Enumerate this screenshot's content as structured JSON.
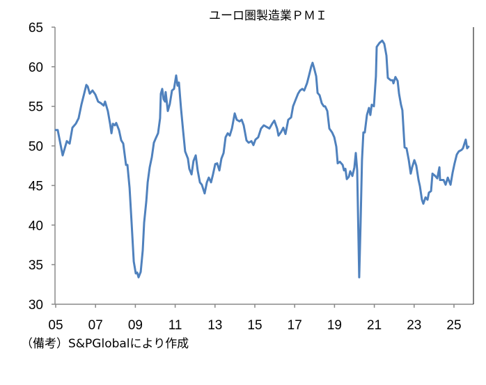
{
  "chart_data": {
    "type": "line",
    "title": "ユーロ圏製造業ＰＭＩ",
    "footnote": "（備考）S&PGlobalにより作成",
    "xlabel": "",
    "ylabel": "",
    "ylim": [
      30,
      65
    ],
    "xlim": [
      2005,
      2025.95
    ],
    "yticks": [
      30,
      35,
      40,
      45,
      50,
      55,
      60,
      65
    ],
    "ytick_labels": [
      "30",
      "35",
      "40",
      "45",
      "50",
      "55",
      "60",
      "65"
    ],
    "xticks": [
      2005,
      2007,
      2009,
      2011,
      2013,
      2015,
      2017,
      2019,
      2021,
      2023,
      2025
    ],
    "xtick_labels": [
      "05",
      "07",
      "09",
      "11",
      "13",
      "15",
      "17",
      "19",
      "21",
      "23",
      "25"
    ],
    "grid": false,
    "legend": "none",
    "color": "#4f81bd",
    "series": [
      {
        "name": "ユーロ圏製造業PMI",
        "points": [
          [
            2005.0,
            52.0
          ],
          [
            2005.1,
            52.0
          ],
          [
            2005.35,
            48.8
          ],
          [
            2005.56,
            50.6
          ],
          [
            2005.7,
            50.3
          ],
          [
            2005.84,
            52.3
          ],
          [
            2006.01,
            52.8
          ],
          [
            2006.15,
            53.5
          ],
          [
            2006.29,
            55.2
          ],
          [
            2006.47,
            57.0
          ],
          [
            2006.54,
            57.7
          ],
          [
            2006.61,
            57.5
          ],
          [
            2006.71,
            56.6
          ],
          [
            2006.85,
            57.0
          ],
          [
            2006.99,
            56.5
          ],
          [
            2007.13,
            55.6
          ],
          [
            2007.27,
            55.4
          ],
          [
            2007.41,
            55.1
          ],
          [
            2007.48,
            55.6
          ],
          [
            2007.62,
            54.4
          ],
          [
            2007.73,
            52.8
          ],
          [
            2007.8,
            51.6
          ],
          [
            2007.87,
            52.8
          ],
          [
            2007.97,
            52.6
          ],
          [
            2008.04,
            52.9
          ],
          [
            2008.18,
            52.0
          ],
          [
            2008.29,
            50.7
          ],
          [
            2008.39,
            50.3
          ],
          [
            2008.53,
            47.6
          ],
          [
            2008.6,
            47.6
          ],
          [
            2008.71,
            44.7
          ],
          [
            2008.81,
            40.3
          ],
          [
            2008.92,
            35.4
          ],
          [
            2009.02,
            33.9
          ],
          [
            2009.09,
            34.0
          ],
          [
            2009.16,
            33.4
          ],
          [
            2009.27,
            34.1
          ],
          [
            2009.37,
            36.8
          ],
          [
            2009.44,
            40.3
          ],
          [
            2009.55,
            43.0
          ],
          [
            2009.62,
            45.4
          ],
          [
            2009.72,
            47.3
          ],
          [
            2009.83,
            48.6
          ],
          [
            2009.93,
            50.4
          ],
          [
            2010.03,
            51.0
          ],
          [
            2010.14,
            51.6
          ],
          [
            2010.24,
            53.5
          ],
          [
            2010.28,
            56.6
          ],
          [
            2010.35,
            57.2
          ],
          [
            2010.42,
            55.9
          ],
          [
            2010.49,
            55.6
          ],
          [
            2010.52,
            56.8
          ],
          [
            2010.63,
            54.4
          ],
          [
            2010.73,
            55.3
          ],
          [
            2010.84,
            57.0
          ],
          [
            2010.94,
            57.2
          ],
          [
            2011.05,
            58.9
          ],
          [
            2011.12,
            57.6
          ],
          [
            2011.19,
            58.0
          ],
          [
            2011.29,
            54.8
          ],
          [
            2011.4,
            51.9
          ],
          [
            2011.5,
            49.3
          ],
          [
            2011.64,
            48.4
          ],
          [
            2011.71,
            47.1
          ],
          [
            2011.82,
            46.4
          ],
          [
            2011.92,
            48.1
          ],
          [
            2012.03,
            48.8
          ],
          [
            2012.13,
            46.9
          ],
          [
            2012.24,
            45.4
          ],
          [
            2012.34,
            45.1
          ],
          [
            2012.48,
            44.0
          ],
          [
            2012.59,
            45.4
          ],
          [
            2012.69,
            46.0
          ],
          [
            2012.8,
            45.4
          ],
          [
            2012.9,
            46.4
          ],
          [
            2013.01,
            47.7
          ],
          [
            2013.11,
            47.8
          ],
          [
            2013.22,
            46.9
          ],
          [
            2013.32,
            48.4
          ],
          [
            2013.43,
            49.1
          ],
          [
            2013.53,
            51.1
          ],
          [
            2013.64,
            51.6
          ],
          [
            2013.74,
            51.3
          ],
          [
            2013.85,
            52.2
          ],
          [
            2013.99,
            54.1
          ],
          [
            2014.09,
            53.3
          ],
          [
            2014.23,
            53.1
          ],
          [
            2014.34,
            53.3
          ],
          [
            2014.44,
            52.6
          ],
          [
            2014.58,
            50.7
          ],
          [
            2014.69,
            50.4
          ],
          [
            2014.83,
            50.6
          ],
          [
            2014.93,
            50.1
          ],
          [
            2015.03,
            50.8
          ],
          [
            2015.17,
            51.1
          ],
          [
            2015.31,
            52.2
          ],
          [
            2015.45,
            52.6
          ],
          [
            2015.59,
            52.4
          ],
          [
            2015.73,
            52.2
          ],
          [
            2015.87,
            52.8
          ],
          [
            2015.98,
            53.2
          ],
          [
            2016.12,
            52.2
          ],
          [
            2016.19,
            51.3
          ],
          [
            2016.33,
            51.8
          ],
          [
            2016.43,
            52.3
          ],
          [
            2016.54,
            51.5
          ],
          [
            2016.68,
            53.3
          ],
          [
            2016.82,
            53.6
          ],
          [
            2016.92,
            55.0
          ],
          [
            2017.06,
            55.9
          ],
          [
            2017.17,
            56.6
          ],
          [
            2017.27,
            57.0
          ],
          [
            2017.38,
            57.2
          ],
          [
            2017.48,
            57.0
          ],
          [
            2017.62,
            57.9
          ],
          [
            2017.73,
            59.0
          ],
          [
            2017.83,
            60.0
          ],
          [
            2017.9,
            60.5
          ],
          [
            2017.97,
            59.9
          ],
          [
            2018.08,
            58.8
          ],
          [
            2018.15,
            56.7
          ],
          [
            2018.25,
            56.4
          ],
          [
            2018.36,
            55.4
          ],
          [
            2018.46,
            55.0
          ],
          [
            2018.53,
            55.0
          ],
          [
            2018.64,
            54.4
          ],
          [
            2018.74,
            52.2
          ],
          [
            2018.88,
            51.7
          ],
          [
            2018.99,
            51.1
          ],
          [
            2019.09,
            49.9
          ],
          [
            2019.16,
            47.8
          ],
          [
            2019.27,
            48.0
          ],
          [
            2019.41,
            47.6
          ],
          [
            2019.48,
            46.9
          ],
          [
            2019.55,
            47.1
          ],
          [
            2019.62,
            45.8
          ],
          [
            2019.72,
            46.1
          ],
          [
            2019.79,
            46.8
          ],
          [
            2019.9,
            46.2
          ],
          [
            2020.0,
            47.3
          ],
          [
            2020.07,
            49.1
          ],
          [
            2020.14,
            46.9
          ],
          [
            2020.24,
            33.4
          ],
          [
            2020.31,
            40.3
          ],
          [
            2020.38,
            48.2
          ],
          [
            2020.45,
            51.7
          ],
          [
            2020.52,
            51.7
          ],
          [
            2020.63,
            53.9
          ],
          [
            2020.73,
            54.8
          ],
          [
            2020.8,
            53.9
          ],
          [
            2020.87,
            55.2
          ],
          [
            2020.98,
            55.0
          ],
          [
            2021.08,
            58.8
          ],
          [
            2021.12,
            62.5
          ],
          [
            2021.26,
            63.0
          ],
          [
            2021.4,
            63.3
          ],
          [
            2021.5,
            62.9
          ],
          [
            2021.61,
            61.4
          ],
          [
            2021.68,
            58.6
          ],
          [
            2021.82,
            58.3
          ],
          [
            2021.92,
            58.3
          ],
          [
            2021.96,
            57.9
          ],
          [
            2022.06,
            58.7
          ],
          [
            2022.17,
            58.2
          ],
          [
            2022.24,
            56.6
          ],
          [
            2022.34,
            55.2
          ],
          [
            2022.41,
            54.5
          ],
          [
            2022.52,
            49.8
          ],
          [
            2022.62,
            49.7
          ],
          [
            2022.73,
            48.2
          ],
          [
            2022.83,
            46.5
          ],
          [
            2022.9,
            47.3
          ],
          [
            2023.01,
            48.2
          ],
          [
            2023.11,
            47.5
          ],
          [
            2023.22,
            45.7
          ],
          [
            2023.29,
            44.9
          ],
          [
            2023.39,
            43.2
          ],
          [
            2023.46,
            42.7
          ],
          [
            2023.57,
            43.5
          ],
          [
            2023.67,
            43.2
          ],
          [
            2023.74,
            44.1
          ],
          [
            2023.85,
            44.3
          ],
          [
            2023.92,
            46.5
          ],
          [
            2024.06,
            46.2
          ],
          [
            2024.16,
            45.9
          ],
          [
            2024.27,
            47.3
          ],
          [
            2024.3,
            45.7
          ],
          [
            2024.48,
            45.7
          ],
          [
            2024.58,
            45.1
          ],
          [
            2024.69,
            46.0
          ],
          [
            2024.83,
            45.1
          ],
          [
            2024.93,
            46.6
          ],
          [
            2025.03,
            47.8
          ],
          [
            2025.14,
            48.9
          ],
          [
            2025.24,
            49.3
          ],
          [
            2025.38,
            49.5
          ],
          [
            2025.45,
            49.7
          ],
          [
            2025.59,
            50.8
          ],
          [
            2025.66,
            49.7
          ],
          [
            2025.73,
            49.9
          ]
        ]
      }
    ]
  }
}
